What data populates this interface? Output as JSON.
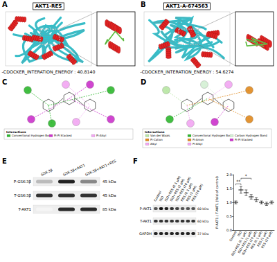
{
  "panels": {
    "A": {
      "letter": "A",
      "title": "AKT1-RES",
      "energy_label": "-CDOCKER_INTERATION_ENERGY : 40.8140"
    },
    "B": {
      "letter": "B",
      "title": "AKT1-A-674563",
      "energy_label": "-CDOCKER_INTERATION_ENERGY : 54.6274"
    },
    "C": {
      "letter": "C",
      "legend_title": "Interactions",
      "legend": [
        {
          "label": "Conventional Hydrogen Bond",
          "color": "#2eb82e"
        },
        {
          "label": "Pi-Pi Stacked",
          "color": "#cc33cc"
        },
        {
          "label": "Pi-Alkyl",
          "color": "#f2a6f2"
        }
      ]
    },
    "D": {
      "letter": "D",
      "legend_title": "Interactions",
      "legend": [
        {
          "label": "Van der Waals",
          "color": "#b8e6a3"
        },
        {
          "label": "Conventional Hydrogen Bond",
          "color": "#2eb82e"
        },
        {
          "label": "Carbon Hydrogen Bond",
          "color": "#d4f0d4"
        },
        {
          "label": "Pi-Cation",
          "color": "#e0891e"
        },
        {
          "label": "Pi-Anion",
          "color": "#e0891e"
        },
        {
          "label": "Pi-Pi Stacked",
          "color": "#cc33cc"
        },
        {
          "label": "Alkyl",
          "color": "#f2a6f2"
        },
        {
          "label": "Pi-Alkyl",
          "color": "#f2a6f2"
        }
      ]
    },
    "E": {
      "letter": "E",
      "lanes": [
        "GSK-3β",
        "GSK-3β+AKT1",
        "GSK-3β+AKT1+RES"
      ],
      "rows": [
        {
          "label": "P-GSK-3β",
          "size": "45 kDa"
        },
        {
          "label": "T-GSK-3β",
          "size": "45 kDa"
        },
        {
          "label": "T-AKT1",
          "size": "85 kDa"
        }
      ]
    },
    "F": {
      "letter": "F",
      "lanes": [
        "Control",
        "ISO",
        "ISO+RES (0.1 μM)",
        "ISO+RES (1 μM)",
        "ISO+RES (10 μM)",
        "RES (0.1 μM)",
        "RES (1 μM)",
        "RES (10 μM)"
      ],
      "rows": [
        {
          "label": "P-AKT1",
          "size": "60 kDa"
        },
        {
          "label": "T-AKT1",
          "size": "60 kDa"
        },
        {
          "label": "GAPDH",
          "size": "37 kDa"
        }
      ]
    }
  },
  "chart_data": {
    "type": "scatter",
    "categories": [
      "Control",
      "ISO",
      "ISO+RES (0.1 μM)",
      "ISO+RES (1 μM)",
      "ISO+RES (10 μM)",
      "RES (0.1 μM)",
      "RES (1 μM)",
      "RES (10 μM)"
    ],
    "values": [
      1.0,
      1.45,
      1.35,
      1.2,
      1.1,
      1.0,
      0.95,
      1.0
    ],
    "errors": [
      0.05,
      0.12,
      0.1,
      0.08,
      0.07,
      0.05,
      0.06,
      0.05
    ],
    "ylabel": "P-AKT1 / T-AKT1 (fold of control)",
    "ylim": [
      0,
      2
    ],
    "yticks": [
      {
        "value": 0,
        "label": "0.0"
      },
      {
        "value": 0.5,
        "label": "0.5"
      },
      {
        "value": 1,
        "label": "1.0"
      },
      {
        "value": 1.5,
        "label": "1.5"
      },
      {
        "value": 2,
        "label": "2.0"
      }
    ],
    "color": "#000000",
    "marker": "dash",
    "annotations": [
      {
        "text": "**",
        "between": [
          "Control",
          "ISO"
        ]
      },
      {
        "text": "*",
        "between": [
          "ISO",
          "ISO+RES (1 μM)"
        ]
      }
    ]
  }
}
